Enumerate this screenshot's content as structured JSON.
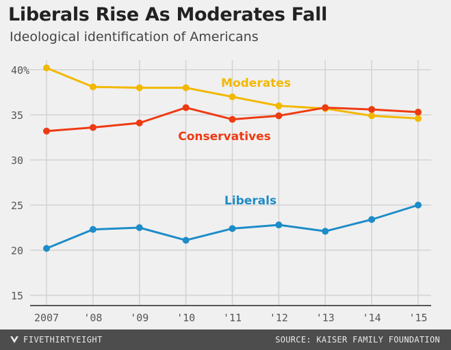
{
  "header": {
    "title": "Liberals Rise As Moderates Fall",
    "subtitle": "Ideological identification of Americans"
  },
  "footer": {
    "brand": "FIVETHIRTYEIGHT",
    "brand_icon": "fivethirtyeight-logo-icon",
    "source": "SOURCE: KAISER FAMILY FOUNDATION"
  },
  "chart_data": {
    "type": "line",
    "categories": [
      "2007",
      "'08",
      "'09",
      "'10",
      "'11",
      "'12",
      "'13",
      "'14",
      "'15"
    ],
    "ylim": [
      13,
      41
    ],
    "yticks": [
      15,
      20,
      25,
      30,
      35,
      40
    ],
    "ytick_labels": [
      "15",
      "20",
      "25",
      "30",
      "35",
      "40%"
    ],
    "grid": true,
    "series": [
      {
        "name": "Moderates",
        "color": "#f2b800",
        "values": [
          40.2,
          38.1,
          38.0,
          38.0,
          37.0,
          36.0,
          35.7,
          34.9,
          34.6
        ]
      },
      {
        "name": "Conservatives",
        "color": "#ee3a12",
        "values": [
          33.2,
          33.6,
          34.1,
          35.8,
          34.5,
          34.9,
          35.8,
          35.6,
          35.3
        ]
      },
      {
        "name": "Liberals",
        "color": "#1d8cc8",
        "values": [
          20.2,
          22.3,
          22.5,
          21.1,
          22.4,
          22.8,
          22.1,
          23.4,
          25.0
        ]
      }
    ]
  }
}
